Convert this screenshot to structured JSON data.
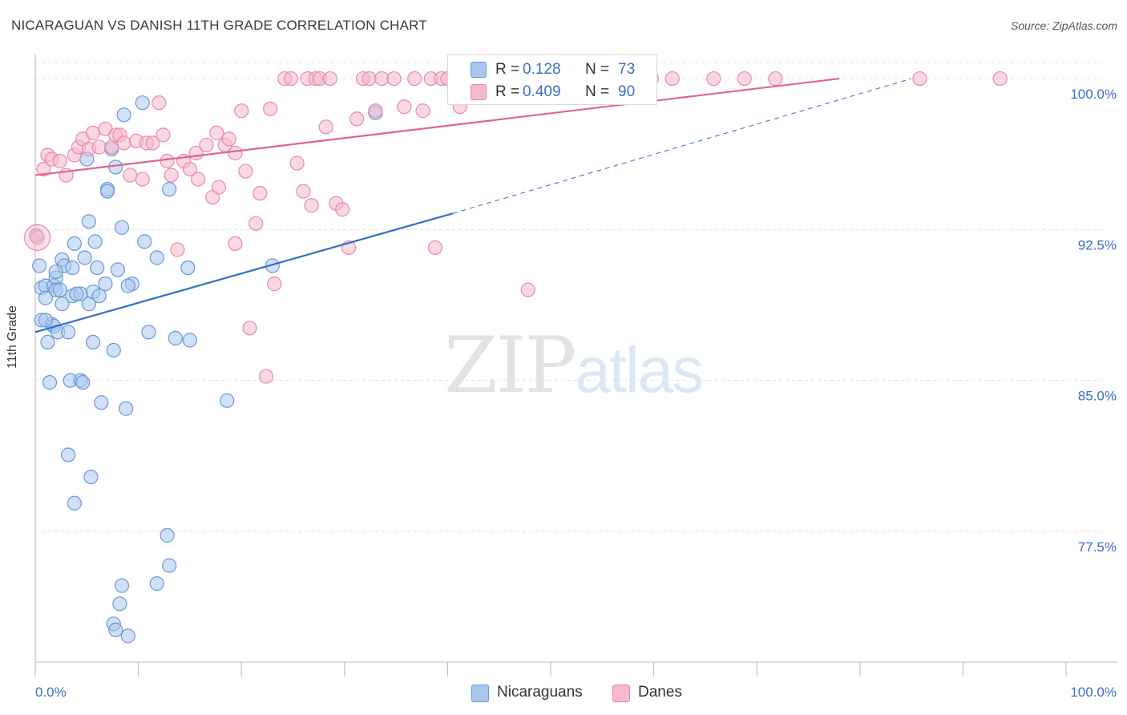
{
  "title": "NICARAGUAN VS DANISH 11TH GRADE CORRELATION CHART",
  "source": "Source: ZipAtlas.com",
  "watermark": {
    "part1": "ZIP",
    "part2": "atlas"
  },
  "colors": {
    "blue_fill": "#a9c6ee",
    "blue_stroke": "#6b98d8",
    "blue_line": "#2f6ec6",
    "pink_fill": "#f6b8cb",
    "pink_stroke": "#e88aa7",
    "pink_line": "#e0648e",
    "grid": "#e3e3e3",
    "tick_label": "#3b6fc4"
  },
  "legend": {
    "rows": [
      {
        "r_label": "R =",
        "r_value": "0.128",
        "n_label": "N =",
        "n_value": "73",
        "color": "#a9c6ee"
      },
      {
        "r_label": "R =",
        "r_value": "0.409",
        "n_label": "N =",
        "n_value": "90",
        "color": "#f6b8cb"
      }
    ],
    "bottom": [
      {
        "label": "Nicaraguans",
        "color": "#a9c6ee"
      },
      {
        "label": "Danes",
        "color": "#f6b8cb"
      }
    ]
  },
  "chart_data": {
    "type": "scatter",
    "title": "NICARAGUAN VS DANISH 11TH GRADE CORRELATION CHART",
    "xlabel": "",
    "ylabel": "11th Grade",
    "xlim": [
      0,
      100
    ],
    "ylim": [
      71,
      100.8
    ],
    "x_tick_labels": [
      "0.0%",
      "100.0%"
    ],
    "y_ticks": [
      77.5,
      85.0,
      92.5,
      100.0
    ],
    "y_tick_labels": [
      "77.5%",
      "85.0%",
      "92.5%",
      "100.0%"
    ],
    "grid": true,
    "legend_position": "top-center",
    "series": [
      {
        "name": "Nicaraguans",
        "r": 0.128,
        "n": 73,
        "trend": {
          "x0": 0,
          "y0": 87.4,
          "x1": 40.5,
          "y1": 93.3,
          "dashed_to_x": 85,
          "dashed_to_y": 100.0
        },
        "points": [
          [
            0.1,
            92.2
          ],
          [
            0.4,
            90.7
          ],
          [
            0.6,
            89.6
          ],
          [
            0.6,
            88.0
          ],
          [
            1.0,
            89.7
          ],
          [
            1.0,
            89.1
          ],
          [
            1.2,
            86.9
          ],
          [
            1.4,
            84.9
          ],
          [
            1.6,
            87.8
          ],
          [
            1.8,
            87.7
          ],
          [
            1.8,
            89.7
          ],
          [
            2.0,
            90.1
          ],
          [
            2.0,
            89.5
          ],
          [
            2.2,
            87.4
          ],
          [
            2.4,
            89.5
          ],
          [
            2.6,
            91.0
          ],
          [
            2.6,
            88.8
          ],
          [
            2.8,
            90.7
          ],
          [
            3.2,
            81.3
          ],
          [
            3.2,
            87.4
          ],
          [
            3.4,
            85.0
          ],
          [
            3.6,
            89.2
          ],
          [
            3.6,
            90.6
          ],
          [
            3.8,
            78.9
          ],
          [
            3.8,
            91.8
          ],
          [
            4.4,
            85.0
          ],
          [
            4.4,
            89.3
          ],
          [
            4.6,
            84.9
          ],
          [
            4.8,
            91.1
          ],
          [
            5.0,
            96.0
          ],
          [
            5.2,
            92.9
          ],
          [
            5.2,
            88.8
          ],
          [
            5.4,
            80.2
          ],
          [
            5.6,
            89.4
          ],
          [
            5.6,
            86.9
          ],
          [
            5.8,
            91.9
          ],
          [
            6.0,
            90.6
          ],
          [
            6.2,
            89.2
          ],
          [
            6.4,
            83.9
          ],
          [
            6.8,
            89.8
          ],
          [
            7.0,
            94.5
          ],
          [
            7.0,
            94.4
          ],
          [
            7.4,
            96.5
          ],
          [
            7.6,
            86.5
          ],
          [
            7.8,
            95.6
          ],
          [
            7.6,
            72.9
          ],
          [
            7.8,
            72.6
          ],
          [
            8.0,
            90.5
          ],
          [
            8.2,
            73.9
          ],
          [
            8.4,
            74.8
          ],
          [
            8.4,
            92.6
          ],
          [
            8.6,
            98.2
          ],
          [
            8.8,
            83.6
          ],
          [
            9.0,
            72.3
          ],
          [
            9.4,
            89.8
          ],
          [
            10.4,
            98.8
          ],
          [
            10.6,
            91.9
          ],
          [
            11.0,
            87.4
          ],
          [
            11.8,
            74.9
          ],
          [
            11.8,
            91.1
          ],
          [
            12.8,
            77.3
          ],
          [
            13.0,
            75.8
          ],
          [
            13.0,
            94.5
          ],
          [
            13.6,
            87.1
          ],
          [
            14.8,
            90.6
          ],
          [
            15.0,
            87.0
          ],
          [
            18.6,
            84.0
          ],
          [
            23.0,
            90.7
          ],
          [
            33.0,
            98.3
          ],
          [
            1.0,
            88.0
          ],
          [
            2.0,
            90.4
          ],
          [
            4.0,
            89.3
          ],
          [
            9.0,
            89.7
          ]
        ]
      },
      {
        "name": "Danes",
        "r": 0.409,
        "n": 90,
        "trend": {
          "x0": 0,
          "y0": 95.2,
          "x1": 78,
          "y1": 100.0
        },
        "points": [
          [
            0.2,
            92.1
          ],
          [
            0.8,
            95.5
          ],
          [
            1.2,
            96.2
          ],
          [
            1.6,
            96.0
          ],
          [
            2.4,
            95.9
          ],
          [
            3.0,
            95.2
          ],
          [
            3.8,
            96.2
          ],
          [
            4.2,
            96.6
          ],
          [
            4.6,
            97.0
          ],
          [
            5.2,
            96.5
          ],
          [
            5.6,
            97.3
          ],
          [
            6.2,
            96.6
          ],
          [
            6.8,
            97.5
          ],
          [
            7.4,
            96.6
          ],
          [
            7.8,
            97.2
          ],
          [
            8.2,
            97.2
          ],
          [
            8.6,
            96.8
          ],
          [
            9.2,
            95.2
          ],
          [
            9.8,
            96.9
          ],
          [
            10.4,
            95.0
          ],
          [
            10.8,
            96.8
          ],
          [
            11.4,
            96.8
          ],
          [
            12.0,
            98.8
          ],
          [
            12.4,
            97.2
          ],
          [
            12.8,
            95.9
          ],
          [
            13.2,
            95.2
          ],
          [
            13.8,
            91.5
          ],
          [
            14.4,
            95.9
          ],
          [
            15.0,
            95.5
          ],
          [
            15.6,
            96.3
          ],
          [
            15.8,
            95.0
          ],
          [
            16.6,
            96.7
          ],
          [
            17.2,
            94.1
          ],
          [
            17.6,
            97.3
          ],
          [
            17.8,
            94.6
          ],
          [
            18.4,
            96.7
          ],
          [
            18.8,
            97.0
          ],
          [
            19.4,
            96.3
          ],
          [
            19.4,
            91.8
          ],
          [
            20.0,
            98.4
          ],
          [
            20.4,
            95.4
          ],
          [
            20.8,
            87.6
          ],
          [
            21.4,
            92.8
          ],
          [
            21.8,
            94.3
          ],
          [
            22.4,
            85.2
          ],
          [
            22.8,
            98.5
          ],
          [
            23.2,
            89.8
          ],
          [
            24.2,
            100.0
          ],
          [
            24.8,
            100.0
          ],
          [
            25.4,
            95.8
          ],
          [
            26.0,
            94.4
          ],
          [
            26.4,
            100.0
          ],
          [
            26.8,
            93.7
          ],
          [
            27.2,
            100.0
          ],
          [
            27.6,
            100.0
          ],
          [
            28.2,
            97.6
          ],
          [
            28.6,
            100.0
          ],
          [
            29.2,
            93.8
          ],
          [
            29.8,
            93.5
          ],
          [
            30.4,
            91.6
          ],
          [
            31.2,
            98.0
          ],
          [
            31.8,
            100.0
          ],
          [
            32.4,
            100.0
          ],
          [
            33.0,
            98.4
          ],
          [
            33.6,
            100.0
          ],
          [
            34.8,
            100.0
          ],
          [
            35.8,
            98.6
          ],
          [
            36.8,
            100.0
          ],
          [
            37.6,
            98.4
          ],
          [
            38.4,
            100.0
          ],
          [
            38.8,
            91.6
          ],
          [
            39.4,
            100.0
          ],
          [
            40.0,
            100.0
          ],
          [
            41.2,
            98.6
          ],
          [
            42.8,
            100.0
          ],
          [
            44.6,
            100.0
          ],
          [
            46.8,
            100.0
          ],
          [
            47.8,
            89.5
          ],
          [
            48.8,
            100.0
          ],
          [
            50.8,
            100.0
          ],
          [
            54.8,
            100.0
          ],
          [
            56.8,
            100.0
          ],
          [
            57.8,
            100.0
          ],
          [
            59.8,
            100.0
          ],
          [
            61.8,
            100.0
          ],
          [
            65.8,
            100.0
          ],
          [
            68.8,
            100.0
          ],
          [
            71.8,
            100.0
          ],
          [
            85.8,
            100.0
          ],
          [
            93.6,
            100.0
          ]
        ]
      }
    ]
  }
}
